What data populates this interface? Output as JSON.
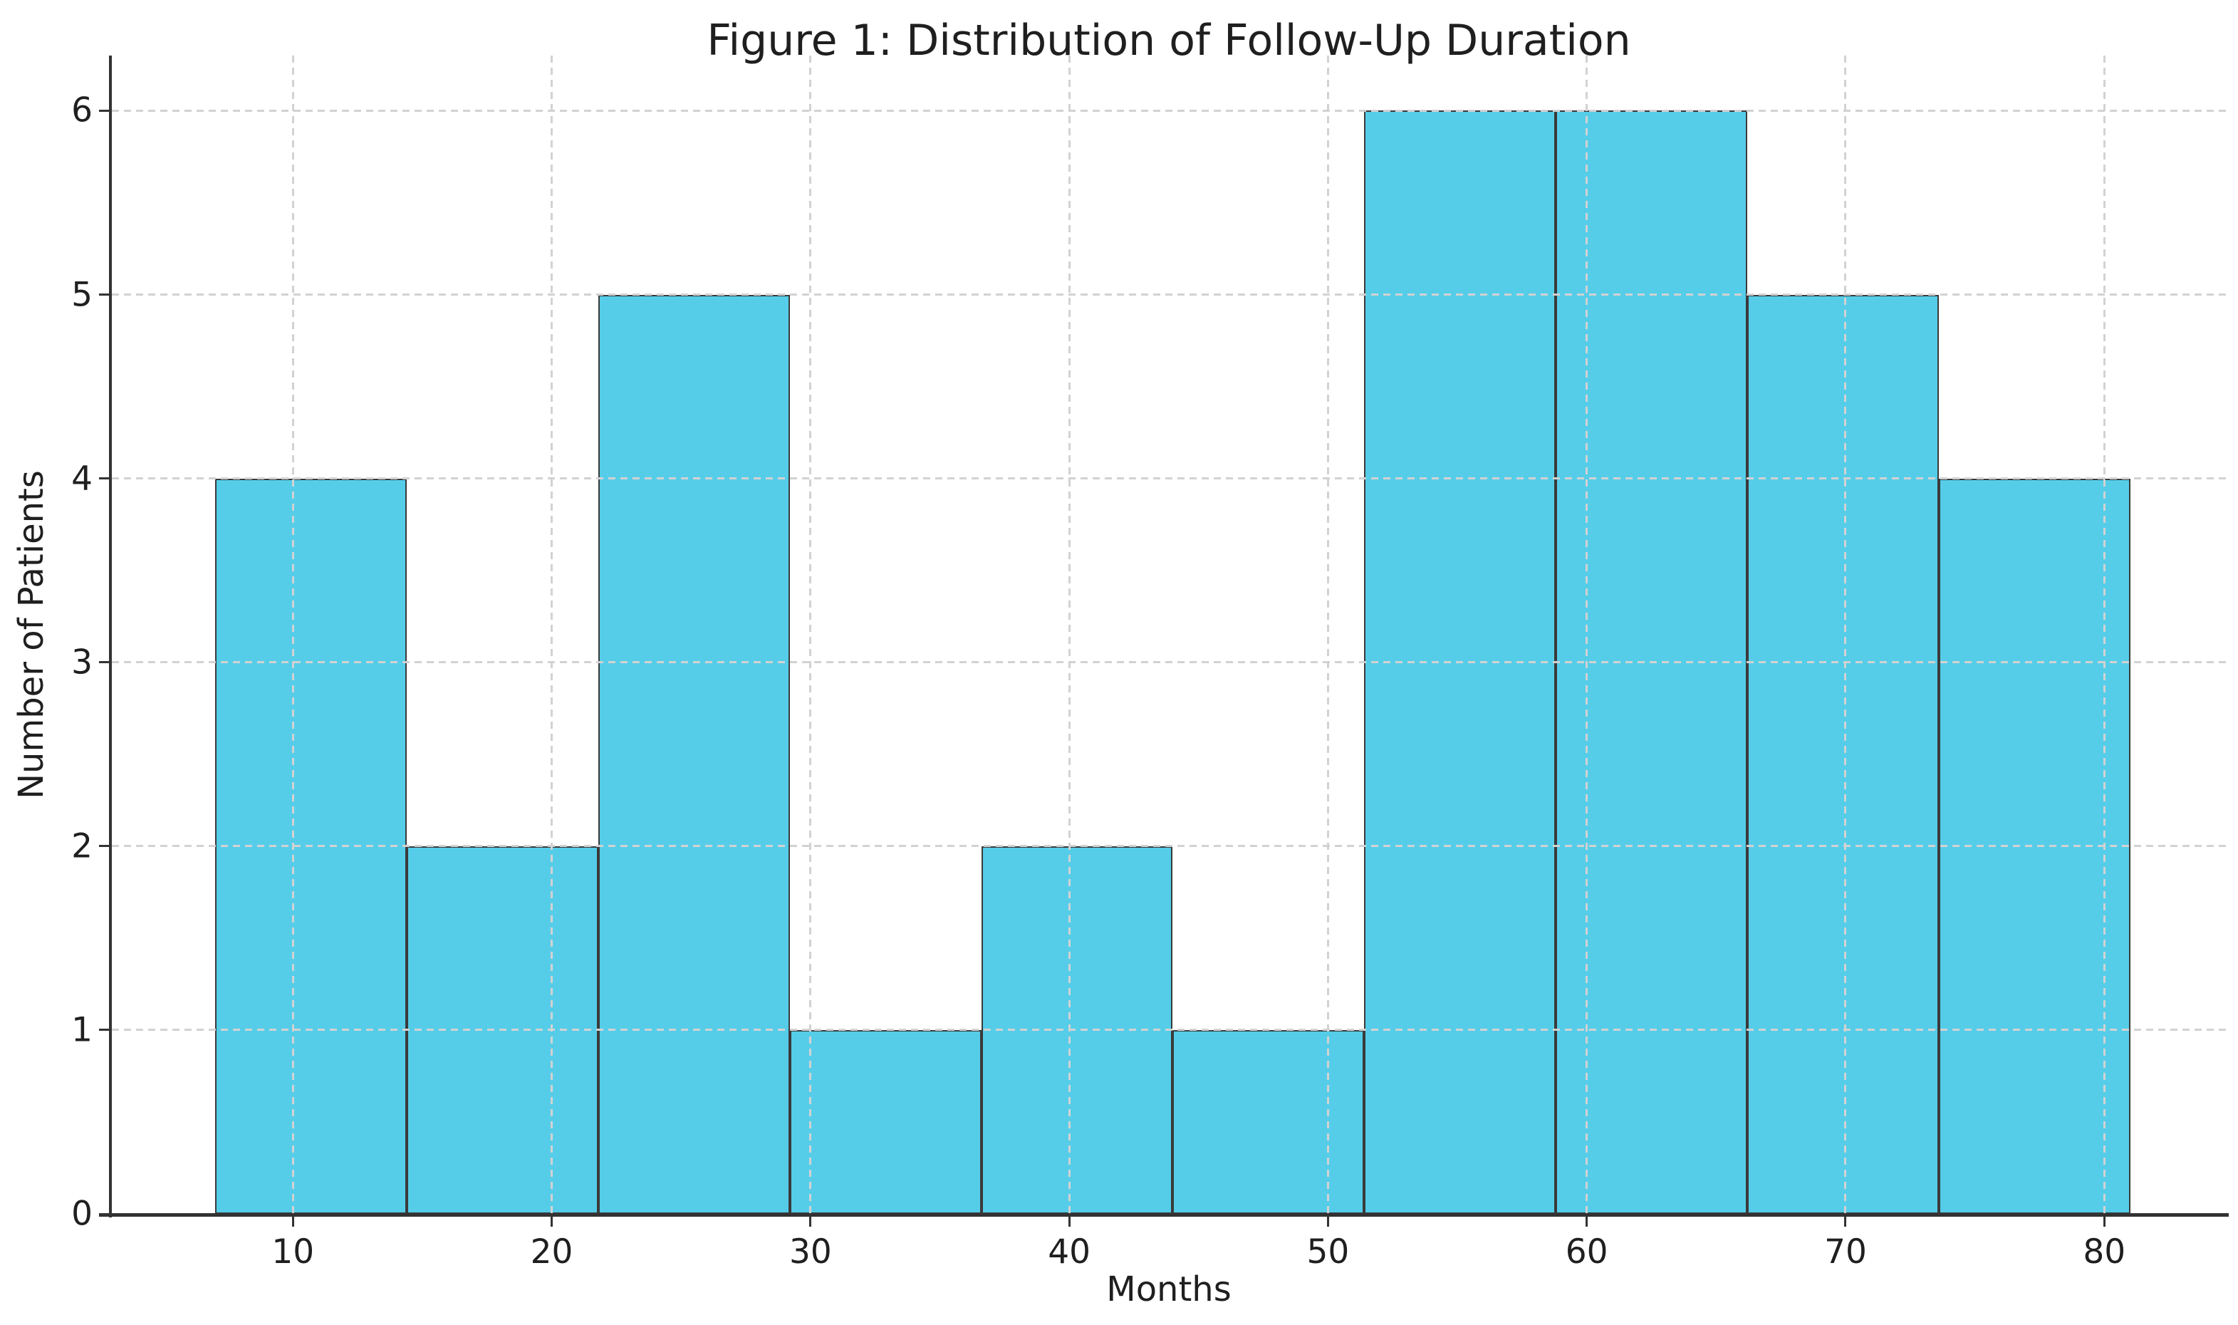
{
  "figure": {
    "title": "Figure 1: Distribution of Follow-Up Duration",
    "background": "#ffffff"
  },
  "chart_data": {
    "type": "bar",
    "subtype": "histogram",
    "title": "Figure 1: Distribution of Follow-Up Duration",
    "xlabel": "Months",
    "ylabel": "Number of Patients",
    "bin_edges": [
      7.0,
      14.4,
      21.8,
      29.2,
      36.6,
      44.0,
      51.4,
      58.8,
      66.2,
      73.6,
      81.0
    ],
    "counts": [
      4,
      2,
      5,
      1,
      2,
      1,
      6,
      6,
      5,
      4
    ],
    "xticks": [
      10,
      20,
      30,
      40,
      50,
      60,
      70,
      80
    ],
    "yticks": [
      0,
      1,
      2,
      3,
      4,
      5,
      6
    ],
    "xlim": [
      3.0,
      84.7
    ],
    "ylim": [
      0,
      6.3
    ],
    "grid": true,
    "grid_linestyle": "dashed",
    "legend_position": "none",
    "spines": [
      "left",
      "bottom"
    ]
  },
  "colors": {
    "bar_fill": "#55cde9",
    "bar_edge": "#3a3a3a",
    "grid": "#d2d2d2",
    "spine": "#333333",
    "tick": "#333333",
    "text": "#1f1f1f",
    "background": "#ffffff"
  }
}
